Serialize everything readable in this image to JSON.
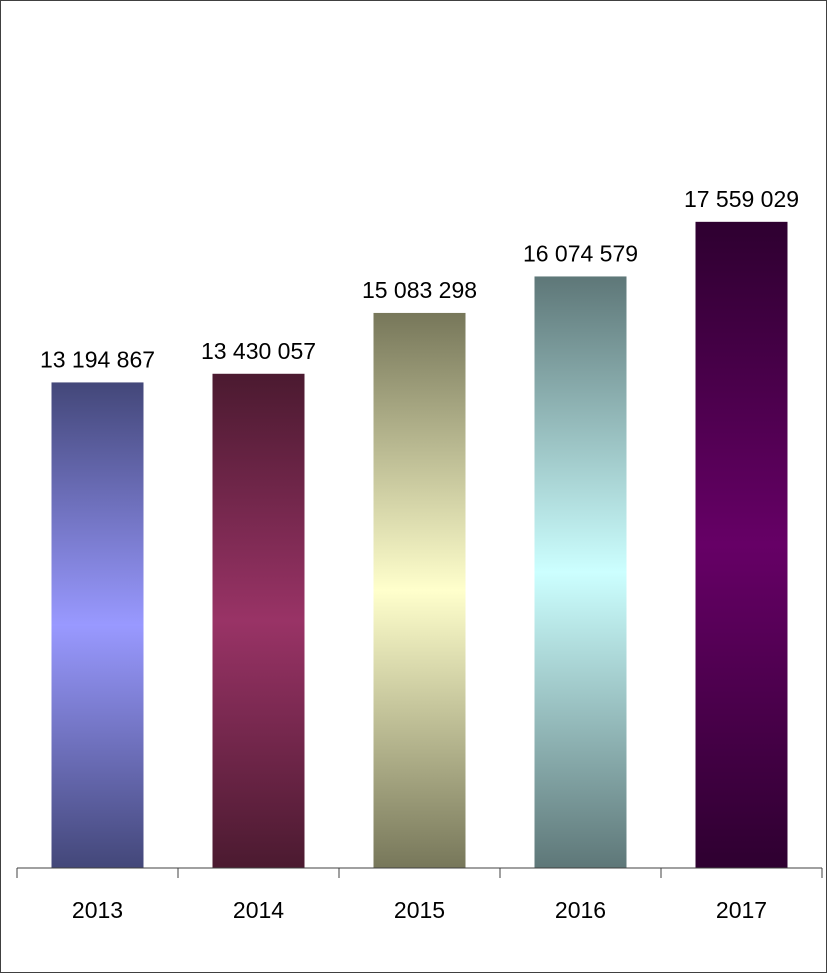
{
  "chart_data": {
    "type": "bar",
    "title": "",
    "xlabel": "",
    "ylabel": "",
    "categories": [
      "2013",
      "2014",
      "2015",
      "2016",
      "2017"
    ],
    "values": [
      13194867,
      13430057,
      15083298,
      16074579,
      17559029
    ],
    "value_labels": [
      "13 194 867",
      "13 430 057",
      "15 083 298",
      "16 074 579",
      "17 559 029"
    ],
    "ylim": [
      0,
      20000000
    ],
    "grid": false,
    "legend": "none",
    "bar_colors": [
      {
        "edge": "#434779",
        "center": "#9999ff"
      },
      {
        "edge": "#4b1a30",
        "center": "#993366"
      },
      {
        "edge": "#77775a",
        "center": "#ffffcc"
      },
      {
        "edge": "#5e7778",
        "center": "#ccffff"
      },
      {
        "edge": "#2e0030",
        "center": "#660066"
      }
    ]
  }
}
